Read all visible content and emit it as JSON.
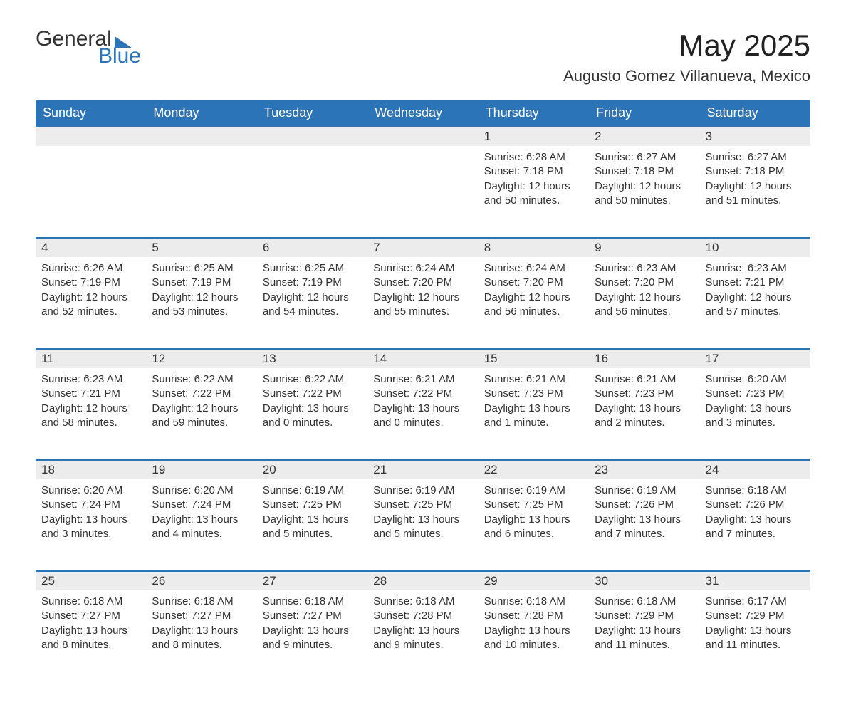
{
  "brand": {
    "word1": "General",
    "word2": "Blue",
    "accent_color": "#2b74b8"
  },
  "title": "May 2025",
  "location": "Augusto Gomez Villanueva, Mexico",
  "colors": {
    "header_bg": "#2b74b8",
    "header_text": "#ffffff",
    "daynum_bg": "#ececec",
    "daynum_border": "#2b74b8",
    "body_text": "#333333",
    "page_bg": "#ffffff"
  },
  "typography": {
    "title_fontsize": 42,
    "location_fontsize": 22,
    "header_fontsize": 18,
    "daynum_fontsize": 17,
    "cell_fontsize": 15,
    "font_family": "Arial"
  },
  "weekdays": [
    "Sunday",
    "Monday",
    "Tuesday",
    "Wednesday",
    "Thursday",
    "Friday",
    "Saturday"
  ],
  "weeks": [
    [
      null,
      null,
      null,
      null,
      {
        "n": "1",
        "sunrise": "Sunrise: 6:28 AM",
        "sunset": "Sunset: 7:18 PM",
        "day1": "Daylight: 12 hours",
        "day2": "and 50 minutes."
      },
      {
        "n": "2",
        "sunrise": "Sunrise: 6:27 AM",
        "sunset": "Sunset: 7:18 PM",
        "day1": "Daylight: 12 hours",
        "day2": "and 50 minutes."
      },
      {
        "n": "3",
        "sunrise": "Sunrise: 6:27 AM",
        "sunset": "Sunset: 7:18 PM",
        "day1": "Daylight: 12 hours",
        "day2": "and 51 minutes."
      }
    ],
    [
      {
        "n": "4",
        "sunrise": "Sunrise: 6:26 AM",
        "sunset": "Sunset: 7:19 PM",
        "day1": "Daylight: 12 hours",
        "day2": "and 52 minutes."
      },
      {
        "n": "5",
        "sunrise": "Sunrise: 6:25 AM",
        "sunset": "Sunset: 7:19 PM",
        "day1": "Daylight: 12 hours",
        "day2": "and 53 minutes."
      },
      {
        "n": "6",
        "sunrise": "Sunrise: 6:25 AM",
        "sunset": "Sunset: 7:19 PM",
        "day1": "Daylight: 12 hours",
        "day2": "and 54 minutes."
      },
      {
        "n": "7",
        "sunrise": "Sunrise: 6:24 AM",
        "sunset": "Sunset: 7:20 PM",
        "day1": "Daylight: 12 hours",
        "day2": "and 55 minutes."
      },
      {
        "n": "8",
        "sunrise": "Sunrise: 6:24 AM",
        "sunset": "Sunset: 7:20 PM",
        "day1": "Daylight: 12 hours",
        "day2": "and 56 minutes."
      },
      {
        "n": "9",
        "sunrise": "Sunrise: 6:23 AM",
        "sunset": "Sunset: 7:20 PM",
        "day1": "Daylight: 12 hours",
        "day2": "and 56 minutes."
      },
      {
        "n": "10",
        "sunrise": "Sunrise: 6:23 AM",
        "sunset": "Sunset: 7:21 PM",
        "day1": "Daylight: 12 hours",
        "day2": "and 57 minutes."
      }
    ],
    [
      {
        "n": "11",
        "sunrise": "Sunrise: 6:23 AM",
        "sunset": "Sunset: 7:21 PM",
        "day1": "Daylight: 12 hours",
        "day2": "and 58 minutes."
      },
      {
        "n": "12",
        "sunrise": "Sunrise: 6:22 AM",
        "sunset": "Sunset: 7:22 PM",
        "day1": "Daylight: 12 hours",
        "day2": "and 59 minutes."
      },
      {
        "n": "13",
        "sunrise": "Sunrise: 6:22 AM",
        "sunset": "Sunset: 7:22 PM",
        "day1": "Daylight: 13 hours",
        "day2": "and 0 minutes."
      },
      {
        "n": "14",
        "sunrise": "Sunrise: 6:21 AM",
        "sunset": "Sunset: 7:22 PM",
        "day1": "Daylight: 13 hours",
        "day2": "and 0 minutes."
      },
      {
        "n": "15",
        "sunrise": "Sunrise: 6:21 AM",
        "sunset": "Sunset: 7:23 PM",
        "day1": "Daylight: 13 hours",
        "day2": "and 1 minute."
      },
      {
        "n": "16",
        "sunrise": "Sunrise: 6:21 AM",
        "sunset": "Sunset: 7:23 PM",
        "day1": "Daylight: 13 hours",
        "day2": "and 2 minutes."
      },
      {
        "n": "17",
        "sunrise": "Sunrise: 6:20 AM",
        "sunset": "Sunset: 7:23 PM",
        "day1": "Daylight: 13 hours",
        "day2": "and 3 minutes."
      }
    ],
    [
      {
        "n": "18",
        "sunrise": "Sunrise: 6:20 AM",
        "sunset": "Sunset: 7:24 PM",
        "day1": "Daylight: 13 hours",
        "day2": "and 3 minutes."
      },
      {
        "n": "19",
        "sunrise": "Sunrise: 6:20 AM",
        "sunset": "Sunset: 7:24 PM",
        "day1": "Daylight: 13 hours",
        "day2": "and 4 minutes."
      },
      {
        "n": "20",
        "sunrise": "Sunrise: 6:19 AM",
        "sunset": "Sunset: 7:25 PM",
        "day1": "Daylight: 13 hours",
        "day2": "and 5 minutes."
      },
      {
        "n": "21",
        "sunrise": "Sunrise: 6:19 AM",
        "sunset": "Sunset: 7:25 PM",
        "day1": "Daylight: 13 hours",
        "day2": "and 5 minutes."
      },
      {
        "n": "22",
        "sunrise": "Sunrise: 6:19 AM",
        "sunset": "Sunset: 7:25 PM",
        "day1": "Daylight: 13 hours",
        "day2": "and 6 minutes."
      },
      {
        "n": "23",
        "sunrise": "Sunrise: 6:19 AM",
        "sunset": "Sunset: 7:26 PM",
        "day1": "Daylight: 13 hours",
        "day2": "and 7 minutes."
      },
      {
        "n": "24",
        "sunrise": "Sunrise: 6:18 AM",
        "sunset": "Sunset: 7:26 PM",
        "day1": "Daylight: 13 hours",
        "day2": "and 7 minutes."
      }
    ],
    [
      {
        "n": "25",
        "sunrise": "Sunrise: 6:18 AM",
        "sunset": "Sunset: 7:27 PM",
        "day1": "Daylight: 13 hours",
        "day2": "and 8 minutes."
      },
      {
        "n": "26",
        "sunrise": "Sunrise: 6:18 AM",
        "sunset": "Sunset: 7:27 PM",
        "day1": "Daylight: 13 hours",
        "day2": "and 8 minutes."
      },
      {
        "n": "27",
        "sunrise": "Sunrise: 6:18 AM",
        "sunset": "Sunset: 7:27 PM",
        "day1": "Daylight: 13 hours",
        "day2": "and 9 minutes."
      },
      {
        "n": "28",
        "sunrise": "Sunrise: 6:18 AM",
        "sunset": "Sunset: 7:28 PM",
        "day1": "Daylight: 13 hours",
        "day2": "and 9 minutes."
      },
      {
        "n": "29",
        "sunrise": "Sunrise: 6:18 AM",
        "sunset": "Sunset: 7:28 PM",
        "day1": "Daylight: 13 hours",
        "day2": "and 10 minutes."
      },
      {
        "n": "30",
        "sunrise": "Sunrise: 6:18 AM",
        "sunset": "Sunset: 7:29 PM",
        "day1": "Daylight: 13 hours",
        "day2": "and 11 minutes."
      },
      {
        "n": "31",
        "sunrise": "Sunrise: 6:17 AM",
        "sunset": "Sunset: 7:29 PM",
        "day1": "Daylight: 13 hours",
        "day2": "and 11 minutes."
      }
    ]
  ]
}
